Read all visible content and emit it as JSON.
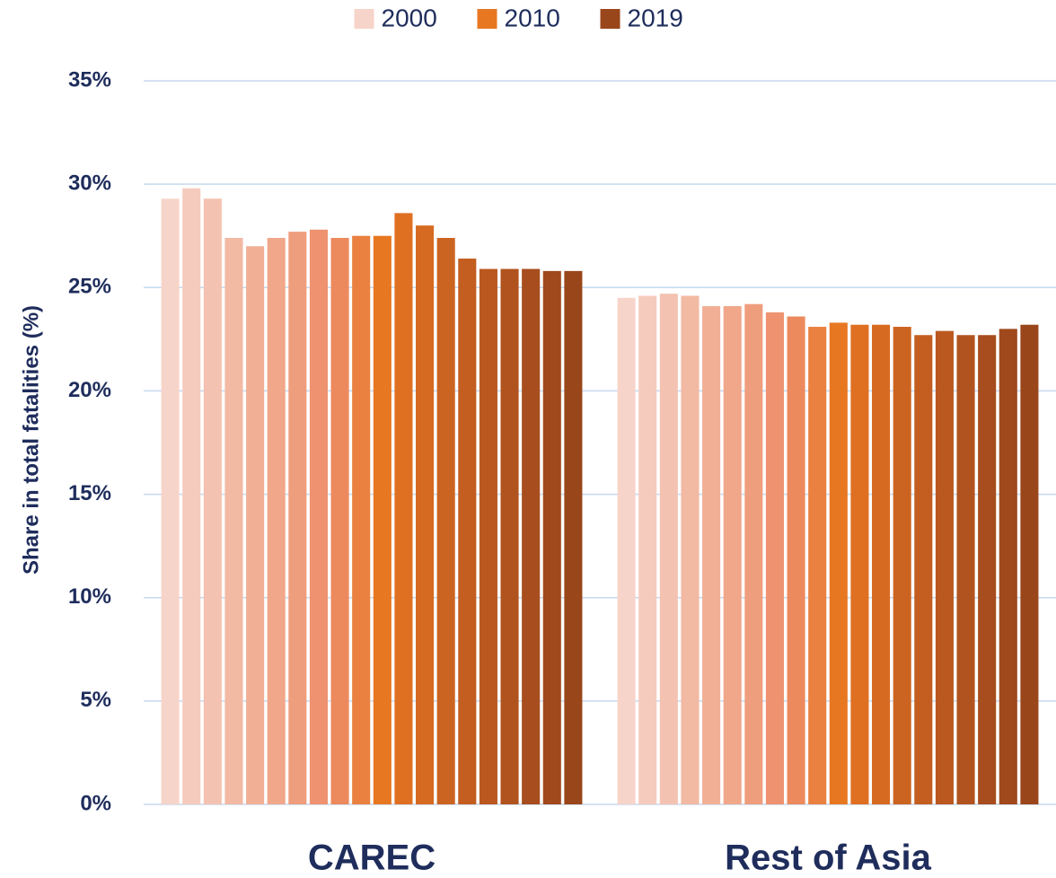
{
  "chart_data": {
    "type": "bar",
    "y_label": "Share in total fatalities (%)",
    "categories": [
      "CAREC",
      "Rest of Asia"
    ],
    "series": [
      {
        "name": "2000",
        "color": "#f7d4c9",
        "values": [
          29.3,
          24.5
        ]
      },
      {
        "color": "#f5cbbd",
        "values": [
          29.8,
          24.6
        ]
      },
      {
        "color": "#f4c2b0",
        "values": [
          29.3,
          24.7
        ]
      },
      {
        "color": "#f2b9a3",
        "values": [
          27.4,
          24.6
        ]
      },
      {
        "color": "#f1b096",
        "values": [
          27.0,
          24.1
        ]
      },
      {
        "color": "#f0a78a",
        "values": [
          27.4,
          24.1
        ]
      },
      {
        "color": "#ef9e7d",
        "values": [
          27.7,
          24.2
        ]
      },
      {
        "color": "#ee9270",
        "values": [
          27.8,
          23.8
        ]
      },
      {
        "color": "#ec8a5e",
        "values": [
          27.4,
          23.6
        ]
      },
      {
        "color": "#ea8140",
        "values": [
          27.5,
          23.1
        ]
      },
      {
        "name": "2010",
        "color": "#e87722",
        "values": [
          27.5,
          23.3
        ]
      },
      {
        "color": "#df7022",
        "values": [
          28.6,
          23.2
        ]
      },
      {
        "color": "#d66a21",
        "values": [
          28.0,
          23.2
        ]
      },
      {
        "color": "#cc6421",
        "values": [
          27.4,
          23.1
        ]
      },
      {
        "color": "#c35e20",
        "values": [
          26.4,
          22.7
        ]
      },
      {
        "color": "#ba5820",
        "values": [
          25.9,
          22.9
        ]
      },
      {
        "color": "#b1531f",
        "values": [
          25.9,
          22.7
        ]
      },
      {
        "color": "#a84d1e",
        "values": [
          25.9,
          22.7
        ]
      },
      {
        "color": "#a0491d",
        "values": [
          25.8,
          23.0
        ]
      },
      {
        "name": "2019",
        "color": "#9a461b",
        "values": [
          25.8,
          23.2
        ]
      }
    ],
    "ylim": [
      0,
      35
    ],
    "yticks": [
      {
        "value": 0,
        "label": "0%"
      },
      {
        "value": 5,
        "label": "5%"
      },
      {
        "value": 10,
        "label": "10%"
      },
      {
        "value": 15,
        "label": "15%"
      },
      {
        "value": 20,
        "label": "20%"
      },
      {
        "value": 25,
        "label": "25%"
      },
      {
        "value": 30,
        "label": "30%"
      },
      {
        "value": 35,
        "label": "35%"
      }
    ],
    "grid": true,
    "legend": "top"
  }
}
